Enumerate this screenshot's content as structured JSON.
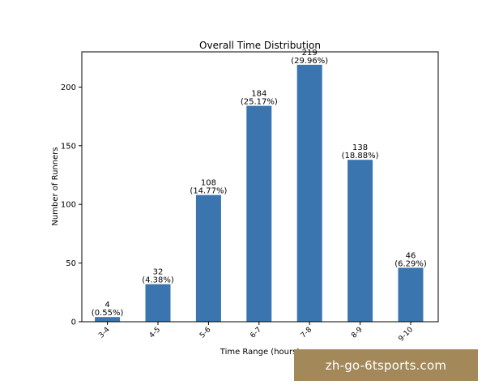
{
  "chart_data": {
    "type": "bar",
    "title": "Overall Time Distribution",
    "xlabel": "Time Range (hours)",
    "ylabel": "Number of Runners",
    "categories": [
      "3-4",
      "4-5",
      "5-6",
      "6-7",
      "7-8",
      "8-9",
      "9-10"
    ],
    "values": [
      4,
      32,
      108,
      184,
      219,
      138,
      46
    ],
    "percent_labels": [
      "(0.55%)",
      "(4.38%)",
      "(14.77%)",
      "(25.17%)",
      "(29.96%)",
      "(18.88%)",
      "(6.29%)"
    ],
    "ylim": [
      0,
      230
    ],
    "yticks": [
      0,
      50,
      100,
      150,
      200
    ],
    "bar_color": "#3a75b0",
    "grid": false,
    "legend": "none"
  },
  "watermark": {
    "text": "zh-go-6tsports.com",
    "background": "#a3895a"
  }
}
